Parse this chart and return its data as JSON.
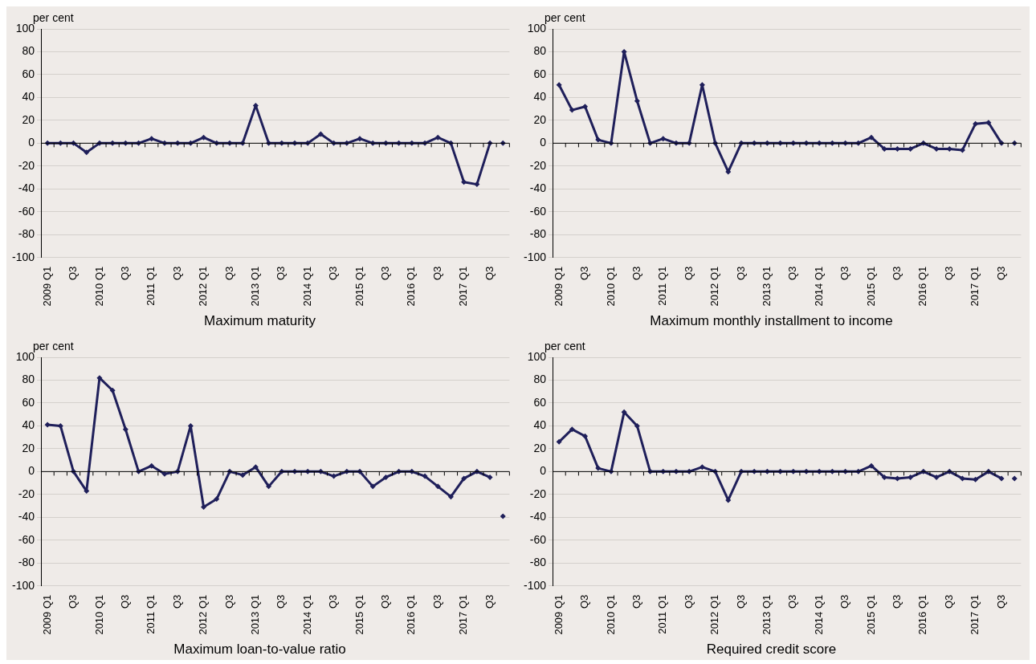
{
  "chart_data": [
    {
      "type": "line",
      "title": "Maximum maturity",
      "ylabel": "per cent",
      "categories": [
        "2009 Q1",
        null,
        "Q3",
        null,
        "2010 Q1",
        null,
        "Q3",
        null,
        "2011 Q1",
        null,
        "Q3",
        null,
        "2012 Q1",
        null,
        "Q3",
        null,
        "2013 Q1",
        null,
        "Q3",
        null,
        "2014 Q1",
        null,
        "Q3",
        null,
        "2015 Q1",
        null,
        "Q3",
        null,
        "2016 Q1",
        null,
        "Q3",
        null,
        "2017 Q1",
        null,
        "Q3",
        null
      ],
      "series": [
        {
          "color": "#1f1f5a",
          "values": [
            0,
            0,
            0,
            -8,
            0,
            0,
            0,
            0,
            4,
            0,
            0,
            0,
            5,
            0,
            0,
            0,
            33,
            0,
            0,
            0,
            0,
            8,
            0,
            0,
            4,
            0,
            0,
            0,
            0,
            0,
            5,
            0,
            -34,
            -36,
            0,
            null
          ]
        },
        {
          "type": "scatter",
          "color": "#1f1f5a",
          "values": [
            null,
            null,
            null,
            null,
            null,
            null,
            null,
            null,
            null,
            null,
            null,
            null,
            null,
            null,
            null,
            null,
            null,
            null,
            null,
            null,
            null,
            null,
            null,
            null,
            null,
            null,
            null,
            null,
            null,
            null,
            null,
            null,
            null,
            null,
            null,
            0
          ]
        }
      ],
      "ylim": [
        -100,
        100
      ],
      "yticks": [
        -100,
        -80,
        -60,
        -40,
        -20,
        0,
        20,
        40,
        60,
        80,
        100
      ],
      "grid": "y",
      "marker": "diamond",
      "legend": false
    },
    {
      "type": "line",
      "title": "Maximum monthly installment to income",
      "ylabel": "per cent",
      "categories": [
        "2009 Q1",
        null,
        "Q3",
        null,
        "2010 Q1",
        null,
        "Q3",
        null,
        "2011 Q1",
        null,
        "Q3",
        null,
        "2012 Q1",
        null,
        "Q3",
        null,
        "2013 Q1",
        null,
        "Q3",
        null,
        "2014 Q1",
        null,
        "Q3",
        null,
        "2015 Q1",
        null,
        "Q3",
        null,
        "2016 Q1",
        null,
        "Q3",
        null,
        "2017 Q1",
        null,
        "Q3",
        null
      ],
      "series": [
        {
          "color": "#1f1f5a",
          "values": [
            51,
            29,
            32,
            3,
            0,
            80,
            37,
            0,
            4,
            0,
            0,
            51,
            0,
            -25,
            0,
            0,
            0,
            0,
            0,
            0,
            0,
            0,
            0,
            0,
            5,
            -5,
            -5,
            -5,
            0,
            -5,
            -5,
            -6,
            17,
            18,
            0,
            null
          ]
        },
        {
          "type": "scatter",
          "color": "#1f1f5a",
          "values": [
            null,
            null,
            null,
            null,
            null,
            null,
            null,
            null,
            null,
            null,
            null,
            null,
            null,
            null,
            null,
            null,
            null,
            null,
            null,
            null,
            null,
            null,
            null,
            null,
            null,
            null,
            null,
            null,
            null,
            null,
            null,
            null,
            null,
            null,
            null,
            0
          ]
        }
      ],
      "ylim": [
        -100,
        100
      ],
      "yticks": [
        -100,
        -80,
        -60,
        -40,
        -20,
        0,
        20,
        40,
        60,
        80,
        100
      ],
      "grid": "y",
      "marker": "diamond",
      "legend": false
    },
    {
      "type": "line",
      "title": "Maximum loan-to-value ratio",
      "ylabel": "per cent",
      "categories": [
        "2009 Q1",
        null,
        "Q3",
        null,
        "2010 Q1",
        null,
        "Q3",
        null,
        "2011 Q1",
        null,
        "Q3",
        null,
        "2012 Q1",
        null,
        "Q3",
        null,
        "2013 Q1",
        null,
        "Q3",
        null,
        "2014 Q1",
        null,
        "Q3",
        null,
        "2015 Q1",
        null,
        "Q3",
        null,
        "2016 Q1",
        null,
        "Q3",
        null,
        "2017 Q1",
        null,
        "Q3",
        null
      ],
      "series": [
        {
          "color": "#1f1f5a",
          "values": [
            41,
            40,
            0,
            -17,
            82,
            71,
            37,
            0,
            5,
            -2,
            0,
            40,
            -31,
            -24,
            0,
            -3,
            4,
            -13,
            0,
            0,
            0,
            0,
            -4,
            0,
            0,
            -13,
            -5,
            0,
            0,
            -4,
            -13,
            -22,
            -6,
            0,
            -5,
            null
          ]
        },
        {
          "type": "scatter",
          "color": "#1f1f5a",
          "values": [
            null,
            null,
            null,
            null,
            null,
            null,
            null,
            null,
            null,
            null,
            null,
            null,
            null,
            null,
            null,
            null,
            null,
            null,
            null,
            null,
            null,
            null,
            null,
            null,
            null,
            null,
            null,
            null,
            null,
            null,
            null,
            null,
            null,
            null,
            null,
            -39
          ]
        }
      ],
      "ylim": [
        -100,
        100
      ],
      "yticks": [
        -100,
        -80,
        -60,
        -40,
        -20,
        0,
        20,
        40,
        60,
        80,
        100
      ],
      "grid": "y",
      "marker": "diamond",
      "legend": false
    },
    {
      "type": "line",
      "title": "Required credit score",
      "ylabel": "per cent",
      "categories": [
        "2009 Q1",
        null,
        "Q3",
        null,
        "2010 Q1",
        null,
        "Q3",
        null,
        "2011 Q1",
        null,
        "Q3",
        null,
        "2012 Q1",
        null,
        "Q3",
        null,
        "2013 Q1",
        null,
        "Q3",
        null,
        "2014 Q1",
        null,
        "Q3",
        null,
        "2015 Q1",
        null,
        "Q3",
        null,
        "2016 Q1",
        null,
        "Q3",
        null,
        "2017 Q1",
        null,
        "Q3",
        null
      ],
      "series": [
        {
          "color": "#1f1f5a",
          "values": [
            26,
            37,
            31,
            3,
            0,
            52,
            40,
            0,
            0,
            0,
            0,
            4,
            0,
            -25,
            0,
            0,
            0,
            0,
            0,
            0,
            0,
            0,
            0,
            0,
            5,
            -5,
            -6,
            -5,
            0,
            -5,
            0,
            -6,
            -7,
            0,
            -6,
            null
          ]
        },
        {
          "type": "scatter",
          "color": "#1f1f5a",
          "values": [
            null,
            null,
            null,
            null,
            null,
            null,
            null,
            null,
            null,
            null,
            null,
            null,
            null,
            null,
            null,
            null,
            null,
            null,
            null,
            null,
            null,
            null,
            null,
            null,
            null,
            null,
            null,
            null,
            null,
            null,
            null,
            null,
            null,
            null,
            null,
            -6
          ]
        }
      ],
      "ylim": [
        -100,
        100
      ],
      "yticks": [
        -100,
        -80,
        -60,
        -40,
        -20,
        0,
        20,
        40,
        60,
        80,
        100
      ],
      "grid": "y",
      "marker": "diamond",
      "legend": false
    }
  ]
}
